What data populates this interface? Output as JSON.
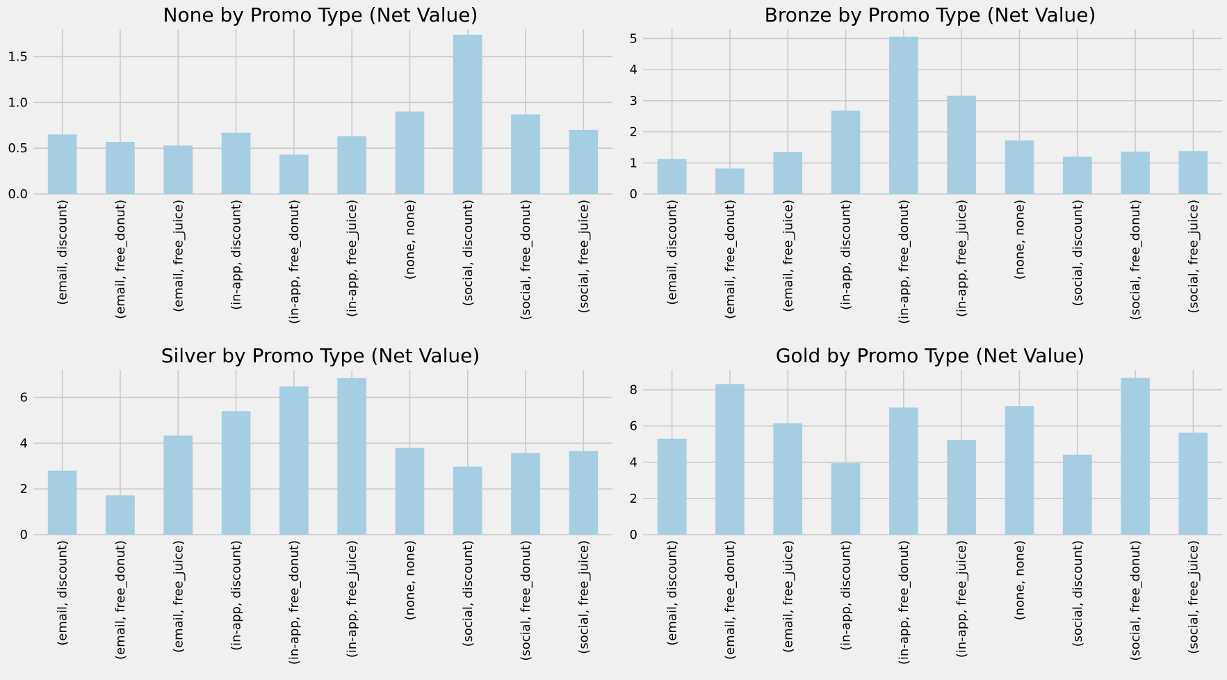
{
  "figure": {
    "background": "#f0f0f0",
    "bar_color": "#a6cee3",
    "grid_color": "#cbcbcb"
  },
  "chart_data": [
    {
      "id": "none",
      "type": "bar",
      "title": "None by Promo Type (Net Value)",
      "xlabel": "",
      "ylabel": "",
      "categories": [
        "(email, discount)",
        "(email, free_donut)",
        "(email, free_juice)",
        "(in-app, discount)",
        "(in-app, free_donut)",
        "(in-app, free_juice)",
        "(none, none)",
        "(social, discount)",
        "(social, free_donut)",
        "(social, free_juice)"
      ],
      "values": [
        0.65,
        0.57,
        0.53,
        0.67,
        0.43,
        0.63,
        0.9,
        1.74,
        0.87,
        0.7
      ],
      "ylim": [
        0,
        1.8
      ],
      "yticks": [
        0.0,
        0.5,
        1.0,
        1.5
      ],
      "ytick_labels": [
        "0.0",
        "0.5",
        "1.0",
        "1.5"
      ],
      "grid": true,
      "legend": "none"
    },
    {
      "id": "bronze",
      "type": "bar",
      "title": "Bronze by Promo Type (Net Value)",
      "xlabel": "",
      "ylabel": "",
      "categories": [
        "(email, discount)",
        "(email, free_donut)",
        "(email, free_juice)",
        "(in-app, discount)",
        "(in-app, free_donut)",
        "(in-app, free_juice)",
        "(none, none)",
        "(social, discount)",
        "(social, free_donut)",
        "(social, free_juice)"
      ],
      "values": [
        1.12,
        0.82,
        1.35,
        2.68,
        5.06,
        3.16,
        1.72,
        1.2,
        1.36,
        1.38
      ],
      "ylim": [
        0,
        5.3
      ],
      "yticks": [
        0,
        1,
        2,
        3,
        4,
        5
      ],
      "ytick_labels": [
        "0",
        "1",
        "2",
        "3",
        "4",
        "5"
      ],
      "grid": true,
      "legend": "none"
    },
    {
      "id": "silver",
      "type": "bar",
      "title": "Silver by Promo Type (Net Value)",
      "xlabel": "",
      "ylabel": "",
      "categories": [
        "(email, discount)",
        "(email, free_donut)",
        "(email, free_juice)",
        "(in-app, discount)",
        "(in-app, free_donut)",
        "(in-app, free_juice)",
        "(none, none)",
        "(social, discount)",
        "(social, free_donut)",
        "(social, free_juice)"
      ],
      "values": [
        2.8,
        1.72,
        4.33,
        5.4,
        6.48,
        6.84,
        3.8,
        2.97,
        3.57,
        3.65
      ],
      "ylim": [
        0,
        7.2
      ],
      "yticks": [
        0,
        2,
        4,
        6
      ],
      "ytick_labels": [
        "0",
        "2",
        "4",
        "6"
      ],
      "grid": true,
      "legend": "none"
    },
    {
      "id": "gold",
      "type": "bar",
      "title": "Gold by Promo Type (Net Value)",
      "xlabel": "",
      "ylabel": "",
      "categories": [
        "(email, discount)",
        "(email, free_donut)",
        "(email, free_juice)",
        "(in-app, discount)",
        "(in-app, free_donut)",
        "(in-app, free_juice)",
        "(none, none)",
        "(social, discount)",
        "(social, free_donut)",
        "(social, free_juice)"
      ],
      "values": [
        5.3,
        8.32,
        6.15,
        3.95,
        7.02,
        5.22,
        7.1,
        4.42,
        8.66,
        5.63
      ],
      "ylim": [
        0,
        9.1
      ],
      "yticks": [
        0,
        2,
        4,
        6,
        8
      ],
      "ytick_labels": [
        "0",
        "2",
        "4",
        "6",
        "8"
      ],
      "grid": true,
      "legend": "none"
    }
  ]
}
